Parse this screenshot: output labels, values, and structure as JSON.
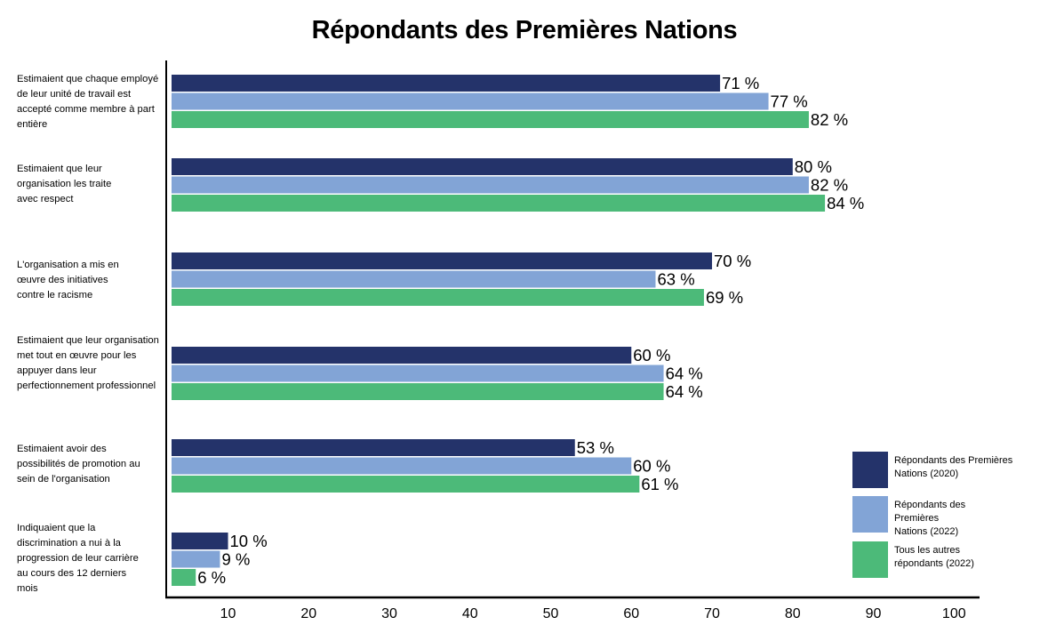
{
  "chart_data": {
    "type": "bar",
    "orientation": "horizontal",
    "title": "Répondants des Premières Nations",
    "categories": [
      "Estimaient que chaque employé de leur unité de travail est accepté comme membre à part entière",
      "Estimaient que leur organisation les traite avec respect",
      "L'organisation a mis en œuvre des initiatives contre le racisme",
      "Estimaient que leur organisation met tout en œuvre pour les appuyer dans leur perfectionnement professionnel",
      "Estimaient avoir des possibilités de promotion au sein de l'organisation",
      "Indiquaient que la discrimination a nui à la progression de leur carrière au cours des 12 derniers mois"
    ],
    "series": [
      {
        "name": "Répondants des Premières Nations (2020)",
        "color": "#24336a",
        "values": [
          71,
          80,
          70,
          60,
          53,
          10
        ]
      },
      {
        "name": "Répondants des Premières Nations (2022)",
        "color": "#82a4d6",
        "values": [
          77,
          82,
          63,
          64,
          60,
          9
        ]
      },
      {
        "name": "Tous les autres répondants (2022)",
        "color": "#4cba79",
        "values": [
          82,
          84,
          69,
          64,
          61,
          6
        ]
      }
    ],
    "value_suffix": " %",
    "xticks": [
      10,
      20,
      30,
      40,
      50,
      60,
      70,
      80,
      90,
      100
    ],
    "xlim": [
      3,
      100
    ],
    "legend_position": "right",
    "grid": false
  }
}
